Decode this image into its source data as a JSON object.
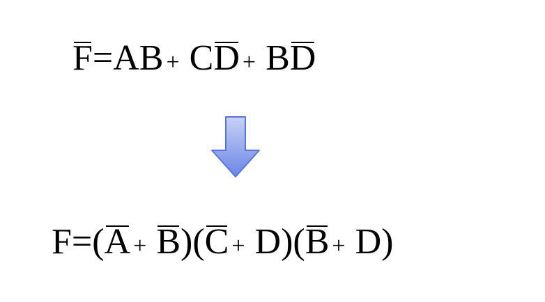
{
  "equations": {
    "top": {
      "parts": [
        {
          "text": "F",
          "bar": true
        },
        {
          "text": "=AB",
          "bar": false
        },
        {
          "text": "+",
          "op": true
        },
        {
          "text": "C",
          "bar": false
        },
        {
          "text": "D",
          "bar": true
        },
        {
          "text": "+",
          "op": true
        },
        {
          "text": "B",
          "bar": false
        },
        {
          "text": "D",
          "bar": true
        }
      ]
    },
    "bottom": {
      "parts": [
        {
          "text": "F=(",
          "bar": false
        },
        {
          "text": "A",
          "bar": true
        },
        {
          "text": "+",
          "op": true
        },
        {
          "text": "B",
          "bar": true
        },
        {
          "text": ")(",
          "bar": false
        },
        {
          "text": "C",
          "bar": true
        },
        {
          "text": "+",
          "op": true
        },
        {
          "text": "D)(",
          "bar": false
        },
        {
          "text": "B",
          "bar": true
        },
        {
          "text": "+",
          "op": true
        },
        {
          "text": "D)",
          "bar": false
        }
      ]
    }
  },
  "arrow": {
    "icon": "down-arrow-icon",
    "fill_top": "#c7d2f7",
    "fill_bottom": "#6b86e6",
    "stroke": "#5a74d6"
  }
}
